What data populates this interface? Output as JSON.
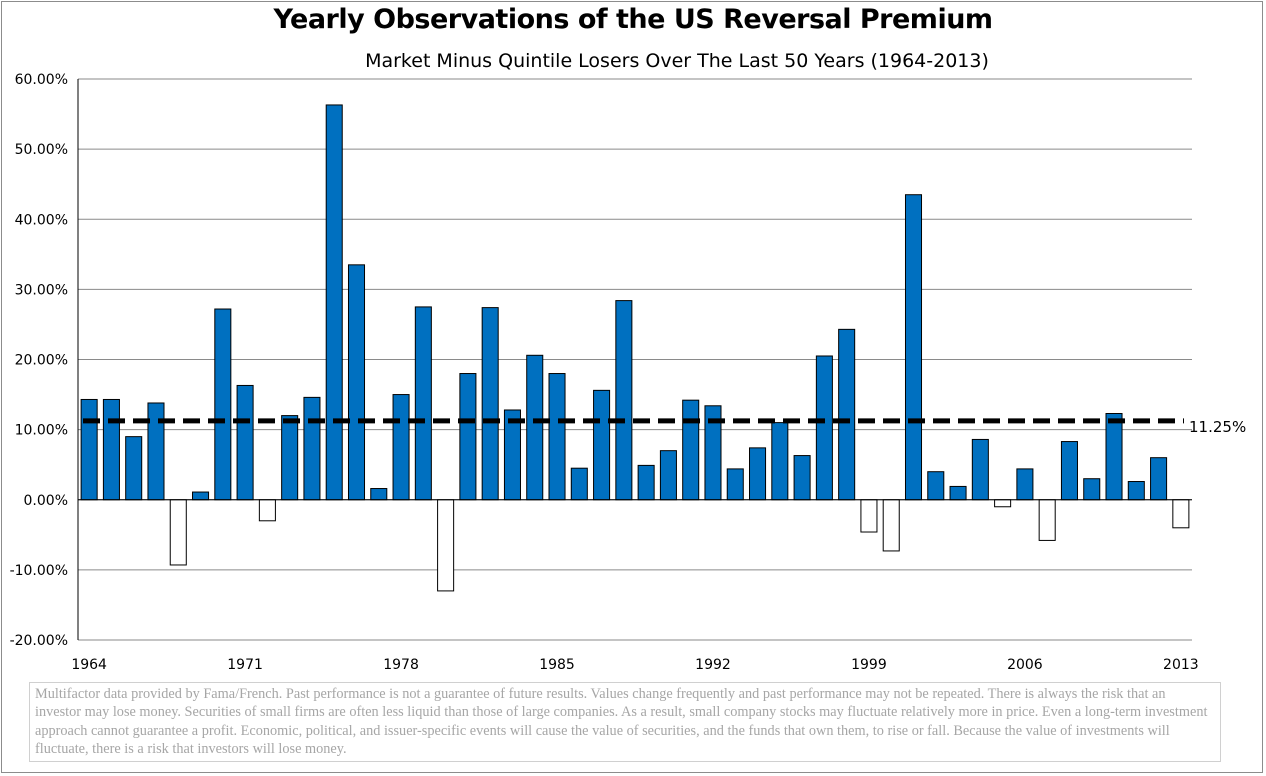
{
  "chart_data": {
    "type": "bar",
    "title": "Yearly Observations of the US Reversal Premium",
    "subtitle": "Market Minus Quintile Losers Over The Last 50 Years (1964-2013)",
    "x": [
      1964,
      1965,
      1966,
      1967,
      1968,
      1969,
      1970,
      1971,
      1972,
      1973,
      1974,
      1975,
      1976,
      1977,
      1978,
      1979,
      1980,
      1981,
      1982,
      1983,
      1984,
      1985,
      1986,
      1987,
      1988,
      1989,
      1990,
      1991,
      1992,
      1993,
      1994,
      1995,
      1996,
      1997,
      1998,
      1999,
      2000,
      2001,
      2002,
      2003,
      2004,
      2005,
      2006,
      2007,
      2008,
      2009,
      2010,
      2011,
      2012,
      2013
    ],
    "values": [
      14.3,
      14.3,
      9.0,
      13.8,
      -9.3,
      1.1,
      27.2,
      16.3,
      -3.0,
      12.0,
      14.6,
      56.3,
      33.5,
      1.6,
      15.0,
      27.5,
      -13.0,
      18.0,
      27.4,
      12.8,
      20.6,
      18.0,
      4.5,
      15.6,
      28.4,
      4.9,
      7.0,
      14.2,
      13.4,
      4.4,
      7.4,
      11.0,
      6.3,
      20.5,
      24.3,
      -4.6,
      -7.3,
      43.5,
      4.0,
      1.9,
      8.6,
      -1.0,
      4.4,
      -5.8,
      8.3,
      3.0,
      12.3,
      2.6,
      6.0,
      -4.0
    ],
    "xtick_labels": [
      "1964",
      "1971",
      "1978",
      "1985",
      "1992",
      "1999",
      "2006",
      "2013"
    ],
    "ytick_labels": [
      "60.00%",
      "50.00%",
      "40.00%",
      "30.00%",
      "20.00%",
      "10.00%",
      "0.00%",
      "-10.00%",
      "-20.00%"
    ],
    "ylim": [
      -20,
      60
    ],
    "average": 11.25,
    "average_label": "11.25%",
    "grid": true,
    "colors": {
      "positive": "#0070c0",
      "negative": "#ffffff",
      "average_line": "#000000"
    }
  },
  "disclaimer": "Multifactor data provided by Fama/French.   Past performance is not a guarantee of future results. Values change frequently and past performance may not be repeated. There is always the risk that an investor may lose money. Securities of small firms are often less liquid than those of large companies. As a result, small company stocks may fluctuate relatively more in price. Even a long-term investment approach cannot guarantee a profit. Economic, political, and issuer-specific events will cause the value of securities, and the funds that own them, to rise or fall. Because the value of investments will fluctuate, there is a risk that investors will lose money."
}
